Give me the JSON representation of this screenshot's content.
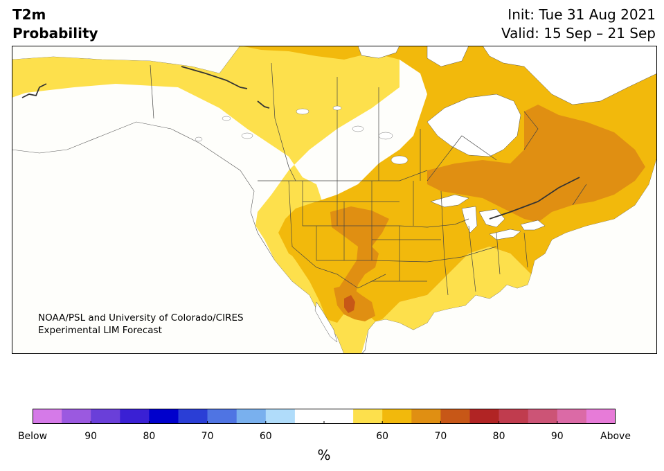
{
  "header": {
    "variable": "T2m",
    "product": "Probability",
    "init": "Init: Tue 31 Aug 2021",
    "valid": "Valid: 15 Sep – 21 Sep"
  },
  "credit": {
    "line1": "NOAA/PSL and University of Colorado/CIRES",
    "line2": "Experimental LIM Forecast"
  },
  "colorbar": {
    "unit": "%",
    "labels": [
      "Below",
      "90",
      "80",
      "70",
      "60",
      "",
      "60",
      "70",
      "80",
      "90",
      "Above"
    ],
    "colors": [
      "#d57ae8",
      "#9b59e0",
      "#6a3fd9",
      "#3a20d4",
      "#0000cc",
      "#2a3ed6",
      "#4f74e3",
      "#79b0ee",
      "#b0dcfa",
      "#ffffff",
      "#ffffff",
      "#fde04c",
      "#f2b90c",
      "#e08f12",
      "#c75717",
      "#b12424",
      "#c03c4e",
      "#cc5476",
      "#db6aa6",
      "#e77bd8"
    ]
  },
  "map": {
    "region": "North America",
    "land_color": "#fefefb",
    "water_color": "#ffffff",
    "border_color": "#333333"
  }
}
